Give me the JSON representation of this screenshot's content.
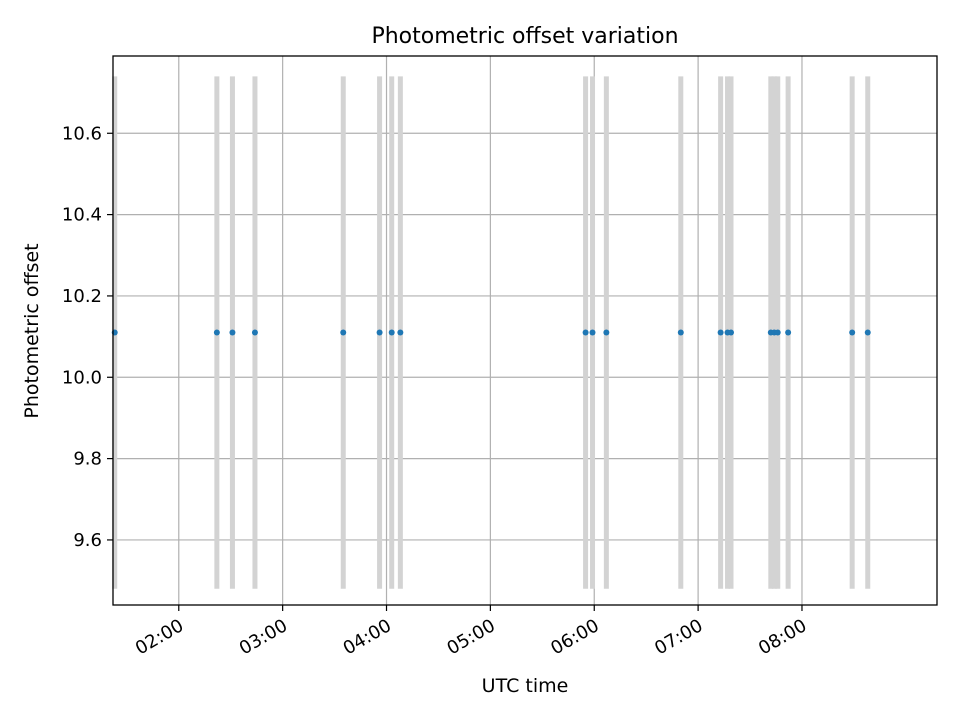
{
  "chart_data": {
    "type": "scatter",
    "title": "Photometric offset variation",
    "xlabel": "UTC time",
    "ylabel": "Photometric offset",
    "x_unit": "UTC time (HH:MM)",
    "xlim": [
      "01:22",
      "09:18"
    ],
    "ylim": [
      9.44,
      10.79
    ],
    "grid": true,
    "x_ticks": [
      "02:00",
      "03:00",
      "04:00",
      "05:00",
      "06:00",
      "07:00",
      "08:00"
    ],
    "y_ticks": [
      9.6,
      9.8,
      10.0,
      10.2,
      10.4,
      10.6
    ],
    "y_tick_labels": [
      "9.6",
      "9.8",
      "10.0",
      "10.2",
      "10.4",
      "10.6"
    ],
    "series": [
      {
        "x": [
          "01:23",
          "02:22",
          "02:31",
          "02:44",
          "03:35",
          "03:56",
          "04:03",
          "04:08",
          "05:55",
          "05:59",
          "06:07",
          "06:50",
          "07:13",
          "07:17",
          "07:19",
          "07:42",
          "07:44",
          "07:46",
          "07:52",
          "08:29",
          "08:38"
        ],
        "y": [
          10.11,
          10.11,
          10.11,
          10.11,
          10.11,
          10.11,
          10.11,
          10.11,
          10.11,
          10.11,
          10.11,
          10.11,
          10.11,
          10.11,
          10.11,
          10.11,
          10.11,
          10.11,
          10.11,
          10.11,
          10.11
        ],
        "y_err": [
          0.63,
          0.63,
          0.63,
          0.63,
          0.63,
          0.63,
          0.63,
          0.63,
          0.63,
          0.63,
          0.63,
          0.63,
          0.63,
          0.63,
          0.63,
          0.63,
          0.63,
          0.63,
          0.63,
          0.63,
          0.63
        ],
        "marker_color": "#1f77b4",
        "errorbar_color": "#d3d3d3"
      }
    ]
  }
}
